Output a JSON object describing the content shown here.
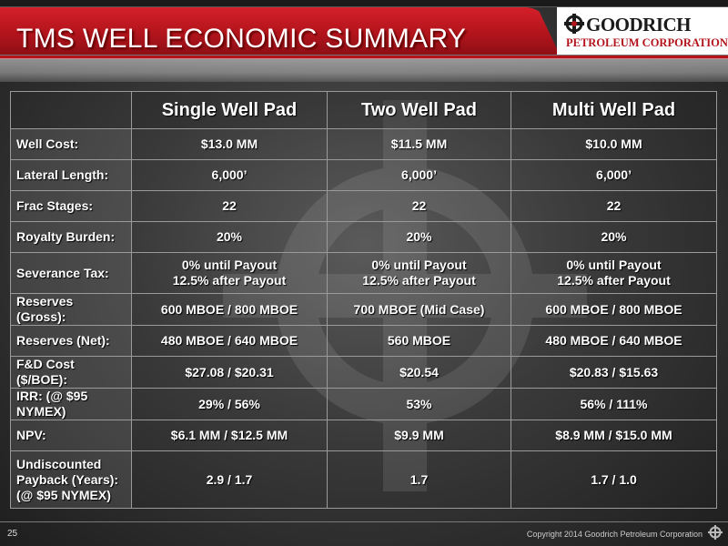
{
  "header": {
    "title": "TMS WELL ECONOMIC SUMMARY",
    "logo_name": "GOODRICH",
    "logo_sub": "PETROLEUM CORPORATION"
  },
  "table": {
    "columns": [
      "Single Well Pad",
      "Two Well Pad",
      "Multi Well Pad"
    ],
    "rows": [
      {
        "label": [
          "Well Cost:"
        ],
        "values": [
          [
            "$13.0 MM"
          ],
          [
            "$11.5 MM"
          ],
          [
            "$10.0 MM"
          ]
        ]
      },
      {
        "label": [
          "Lateral Length:"
        ],
        "values": [
          [
            "6,000’"
          ],
          [
            "6,000’"
          ],
          [
            "6,000’"
          ]
        ]
      },
      {
        "label": [
          "Frac Stages:"
        ],
        "values": [
          [
            "22"
          ],
          [
            "22"
          ],
          [
            "22"
          ]
        ]
      },
      {
        "label": [
          "Royalty Burden:"
        ],
        "values": [
          [
            "20%"
          ],
          [
            "20%"
          ],
          [
            "20%"
          ]
        ]
      },
      {
        "label": [
          "Severance Tax:"
        ],
        "values": [
          [
            "0% until Payout",
            "12.5% after Payout"
          ],
          [
            "0% until Payout",
            "12.5% after Payout"
          ],
          [
            "0% until Payout",
            "12.5% after Payout"
          ]
        ]
      },
      {
        "label": [
          "Reserves",
          "(Gross):"
        ],
        "values": [
          [
            "600 MBOE / 800 MBOE"
          ],
          [
            "700 MBOE (Mid Case)"
          ],
          [
            "600 MBOE / 800 MBOE"
          ]
        ]
      },
      {
        "label": [
          "Reserves (Net):"
        ],
        "values": [
          [
            "480 MBOE / 640 MBOE"
          ],
          [
            "560 MBOE"
          ],
          [
            "480 MBOE / 640 MBOE"
          ]
        ]
      },
      {
        "label": [
          "F&D Cost",
          "($/BOE):"
        ],
        "values": [
          [
            "$27.08 / $20.31"
          ],
          [
            "$20.54"
          ],
          [
            "$20.83 / $15.63"
          ]
        ]
      },
      {
        "label": [
          "IRR: (@ $95",
          "NYMEX)"
        ],
        "values": [
          [
            "29% / 56%"
          ],
          [
            "53%"
          ],
          [
            "56% / 111%"
          ]
        ]
      },
      {
        "label": [
          "NPV:"
        ],
        "values": [
          [
            "$6.1 MM / $12.5 MM"
          ],
          [
            "$9.9 MM"
          ],
          [
            "$8.9 MM / $15.0 MM"
          ]
        ]
      },
      {
        "label": [
          "Undiscounted",
          "Payback (Years):",
          "(@ $95 NYMEX)"
        ],
        "values": [
          [
            "2.9 / 1.7"
          ],
          [
            "1.7"
          ],
          [
            "1.7 / 1.0"
          ]
        ]
      }
    ]
  },
  "footer": {
    "slide_number": "25",
    "copyright": "Copyright 2014 Goodrich Petroleum Corporation"
  },
  "colors": {
    "brand_red": "#b3141c",
    "background": "#3a3a3a"
  },
  "icons": {
    "logo": "gear-cross-icon",
    "footer": "gear-cross-icon"
  }
}
